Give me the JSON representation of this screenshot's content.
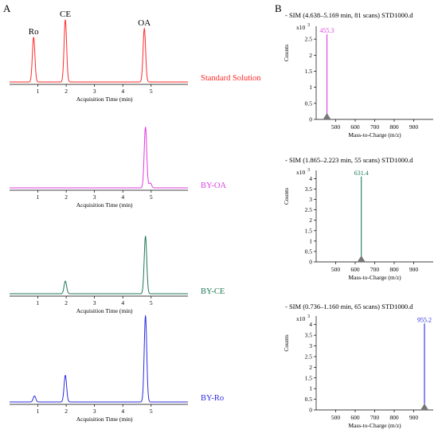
{
  "panels": {
    "left_letter": "A",
    "right_letter": "B"
  },
  "chart_data": [
    {
      "type": "line",
      "xlabel": "Acquisition Time (min)",
      "xlim": [
        0,
        6.3
      ],
      "xticks": [
        1,
        2,
        3,
        4,
        5
      ],
      "tick_labels": [
        "1",
        "2",
        "3",
        "4",
        "5"
      ],
      "series": [
        {
          "label": "Standard Solution",
          "color": "#ff2a2a",
          "peaks": [
            {
              "x": 0.85,
              "height": 0.72
            },
            {
              "x": 1.97,
              "height": 1.0
            },
            {
              "x": 4.76,
              "height": 0.86
            }
          ],
          "peak_labels": [
            {
              "x": 0.85,
              "text": "Ro"
            },
            {
              "x": 1.97,
              "text": "CE"
            },
            {
              "x": 4.76,
              "text": "OA"
            }
          ]
        },
        {
          "label": "BY-OA",
          "color": "#e03ce0",
          "peaks": [
            {
              "x": 4.8,
              "height": 1.0
            },
            {
              "x": 4.97,
              "height": 0.08
            }
          ]
        },
        {
          "label": "BY-CE",
          "color": "#1f7a55",
          "peaks": [
            {
              "x": 1.97,
              "height": 0.22
            },
            {
              "x": 4.8,
              "height": 1.0
            }
          ]
        },
        {
          "label": "BY-Ro",
          "color": "#2c2ce0",
          "peaks": [
            {
              "x": 0.88,
              "height": 0.07
            },
            {
              "x": 1.97,
              "height": 0.31
            },
            {
              "x": 4.8,
              "height": 1.0
            }
          ]
        }
      ]
    },
    {
      "type": "bar",
      "xlabel": "Mass-to-Charge (m/z)",
      "ylabel": "Counts",
      "xlim": [
        400,
        1000
      ],
      "xticks": [
        500,
        600,
        700,
        800,
        900
      ],
      "tick_labels": [
        "500",
        "600",
        "700",
        "800",
        "900"
      ],
      "scale_base": "x10",
      "scale_exp": "3",
      "spectra": [
        {
          "title": "- SIM (4.638–5.169 min, 81 scans) STD1000.d",
          "color": "#e03ce0",
          "mz": 455.3,
          "mz_label": "455.3",
          "intensity": 2.65,
          "yticks": [
            "0",
            "0.5",
            "1",
            "1.5",
            "2",
            "2.5"
          ],
          "ymax": 2.9
        },
        {
          "title": "- SIM (1.865–2.223 min, 55 scans) STD1000.d",
          "color": "#1f7a55",
          "mz": 631.4,
          "mz_label": "631.4",
          "intensity": 4.1,
          "yticks": [
            "0",
            "0.5",
            "1",
            "1.5",
            "2",
            "2.5",
            "3",
            "3.5",
            "4"
          ],
          "ymax": 4.4
        },
        {
          "title": "- SIM (0.736–1.160 min, 65 scans) STD1000.d",
          "color": "#2c2ce0",
          "mz": 955.2,
          "mz_label": "955.2",
          "intensity": 4.05,
          "yticks": [
            "0",
            "0.5",
            "1",
            "1.5",
            "2",
            "2.5",
            "3",
            "3.5",
            "4"
          ],
          "ymax": 4.4
        }
      ]
    }
  ]
}
